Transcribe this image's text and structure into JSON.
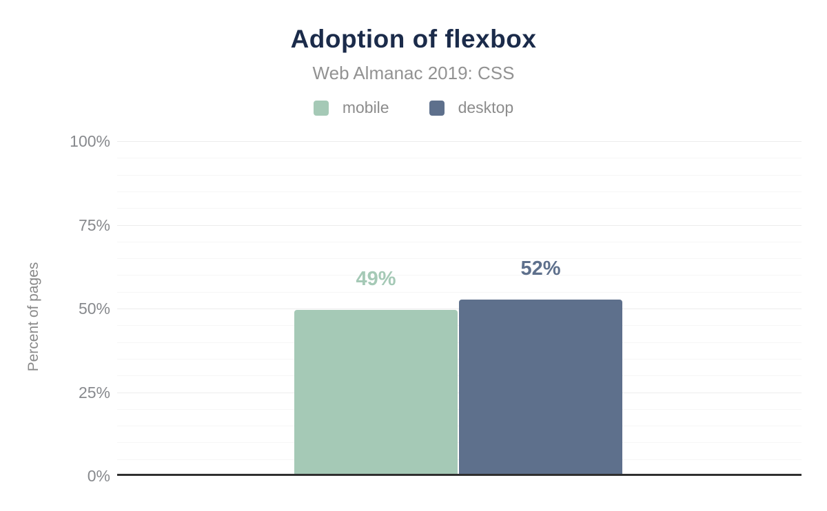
{
  "chart": {
    "title": "Adoption of flexbox",
    "subtitle": "Web Almanac 2019: CSS",
    "ylabel": "Percent of pages"
  },
  "chart_data": {
    "type": "bar",
    "title": "Adoption of flexbox",
    "subtitle": "Web Almanac 2019: CSS",
    "xlabel": "",
    "ylabel": "Percent of pages",
    "ylim": [
      0,
      100
    ],
    "ytick_labels": [
      "0%",
      "25%",
      "50%",
      "75%",
      "100%"
    ],
    "ytick_values": [
      0,
      25,
      50,
      75,
      100
    ],
    "minor_gridline_step": 5,
    "grid": true,
    "legend_position": "top",
    "series": [
      {
        "name": "mobile",
        "values": [
          49
        ],
        "data_label": "49%",
        "color": "#a5c9b6"
      },
      {
        "name": "desktop",
        "values": [
          52
        ],
        "data_label": "52%",
        "color": "#5e708c"
      }
    ],
    "colors": {
      "mobile": "#a5c9b6",
      "desktop": "#5e708c"
    },
    "text_colors": {
      "title": "#1b2b4a",
      "subtitle": "#929292",
      "axis": "#87898d",
      "axis_line": "#2f2f2f"
    }
  }
}
